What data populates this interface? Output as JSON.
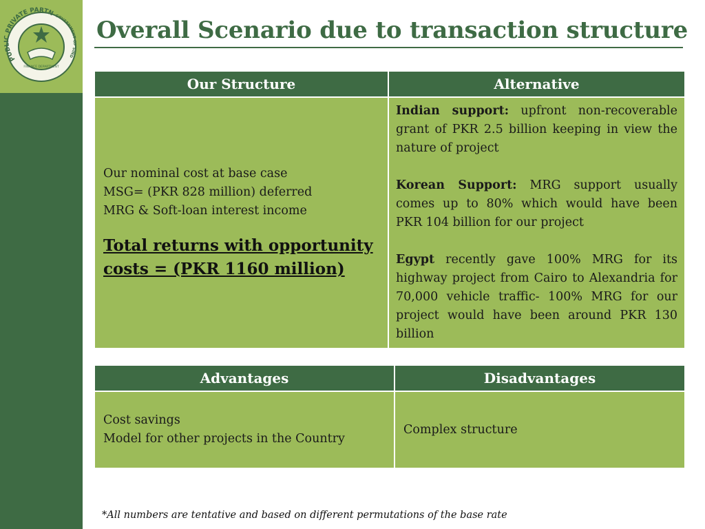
{
  "slide": {
    "title": "Overall Scenario due to transaction structure",
    "logo": {
      "icon": "emblem-handshake-icon",
      "arc_text_left": "PUBLIC PRIVATE PARTNERSHIP UNIT",
      "arc_text_right": "GOVERNMENT OF SINDH",
      "inner_text": "FINANCE DEPARTMENT"
    },
    "footnote": "*All numbers are tentative and based on different permutations of the base rate"
  },
  "comparison_table": {
    "headers": [
      "Our Structure",
      "Alternative"
    ],
    "our_structure": {
      "lines": [
        "Our nominal cost at base case",
        "MSG= (PKR 828 million) deferred",
        "MRG & Soft-loan interest income"
      ],
      "total": "Total returns with opportunity costs = (PKR 1160 million)"
    },
    "alternative": [
      {
        "label": "Indian support:",
        "text": " upfront non-recoverable grant of PKR  2.5 billion keeping in view the nature of project"
      },
      {
        "label": "Korean Support:",
        "text": "  MRG support usually comes up to 80% which would have been PKR 104 billion for our project"
      },
      {
        "label": "Egypt",
        "text": " recently gave 100% MRG for its highway project from Cairo to Alexandria for 70,000 vehicle traffic- 100% MRG for our project would have been around PKR 130 billion"
      }
    ]
  },
  "pros_cons_table": {
    "headers": [
      "Advantages",
      "Disadvantages"
    ],
    "advantages": [
      "Cost savings",
      "Model for other projects in the Country"
    ],
    "disadvantages": [
      "Complex structure"
    ]
  },
  "colors": {
    "dark_green": "#3e6b44",
    "light_green": "#9cbb59",
    "white": "#ffffff"
  }
}
